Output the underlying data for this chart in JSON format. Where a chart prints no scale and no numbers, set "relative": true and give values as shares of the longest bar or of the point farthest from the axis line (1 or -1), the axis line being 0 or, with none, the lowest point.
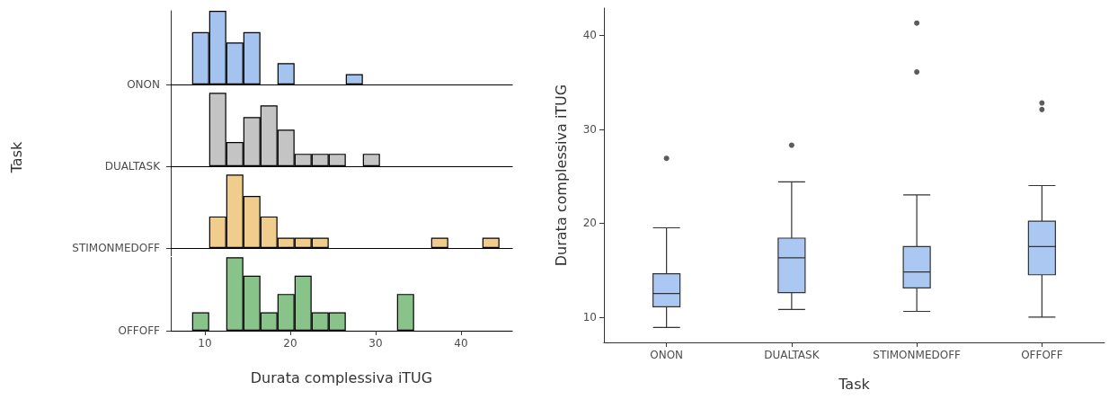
{
  "chart_data": [
    {
      "type": "bar",
      "ylabel": "ONON",
      "xlim": [
        6,
        46
      ],
      "xticks": [
        10,
        20,
        30,
        40
      ],
      "tick_labels": false,
      "relative": true,
      "color": "#a4c4ef",
      "x": [
        9.5,
        11.5,
        13.5,
        15.5,
        17.5,
        19.5,
        21.5,
        23.5,
        25.5,
        27.5
      ],
      "values": [
        0.71,
        1,
        0.57,
        0.71,
        0,
        0.29,
        0,
        0,
        0,
        0.14
      ]
    },
    {
      "type": "bar",
      "ylabel": "DUALTASK",
      "annotations": [
        "Task"
      ],
      "xlim": [
        6,
        46
      ],
      "xticks": [
        10,
        20,
        30,
        40
      ],
      "tick_labels": false,
      "relative": true,
      "color": "#c4c4c4",
      "x": [
        11.5,
        13.5,
        15.5,
        17.5,
        19.5,
        21.5,
        23.5,
        25.5,
        27.5,
        29.5
      ],
      "values": [
        1,
        0.33,
        0.67,
        0.83,
        0.5,
        0.17,
        0.17,
        0.17,
        0,
        0.17
      ]
    },
    {
      "type": "bar",
      "ylabel": "STIMONMEDOFF",
      "xlim": [
        6,
        46
      ],
      "xticks": [
        10,
        20,
        30,
        40
      ],
      "tick_labels": false,
      "relative": true,
      "color": "#f0cd8d",
      "x": [
        11.5,
        13.5,
        15.5,
        17.5,
        19.5,
        21.5,
        23.5,
        25.5,
        27.5,
        29.5,
        31.5,
        33.5,
        35.5,
        37.5,
        39.5,
        41.5,
        43.5
      ],
      "values": [
        0.43,
        1,
        0.71,
        0.43,
        0.14,
        0.14,
        0.14,
        0,
        0,
        0,
        0,
        0,
        0,
        0.14,
        0,
        0,
        0.14
      ]
    },
    {
      "type": "bar",
      "ylabel": "OFFOFF",
      "xlabel": "Durata complessiva iTUG",
      "xlim": [
        6,
        46
      ],
      "xticks": [
        10,
        20,
        30,
        40
      ],
      "tick_labels": "x",
      "relative": true,
      "color": "#88c38a",
      "x": [
        9.5,
        11.5,
        13.5,
        15.5,
        17.5,
        19.5,
        21.5,
        23.5,
        25.5,
        27.5,
        29.5,
        31.5,
        33.5
      ],
      "values": [
        0.25,
        0,
        1,
        0.75,
        0.25,
        0.5,
        0.75,
        0.25,
        0.25,
        0,
        0,
        0,
        0.5
      ]
    },
    {
      "type": "box",
      "xlabel": "Task",
      "ylabel": "Durata complessiva iTUG",
      "categories": [
        "ONON",
        "DUALTASK",
        "STIMONMEDOFF",
        "OFFOFF"
      ],
      "ylim": [
        7.3,
        42.9
      ],
      "yticks": [
        10,
        20,
        30,
        40
      ],
      "color": "#abc8f2",
      "grid": false,
      "boxes": [
        {
          "low": 8.9,
          "q1": 11.1,
          "median": 12.5,
          "q3": 14.6,
          "high": 19.5,
          "outliers": [
            26.9
          ]
        },
        {
          "low": 10.8,
          "q1": 12.6,
          "median": 16.3,
          "q3": 18.4,
          "high": 24.4,
          "outliers": [
            28.3
          ]
        },
        {
          "low": 10.6,
          "q1": 13.1,
          "median": 14.8,
          "q3": 17.5,
          "high": 23.0,
          "outliers": [
            36.1,
            41.3
          ]
        },
        {
          "low": 10.0,
          "q1": 14.5,
          "median": 17.5,
          "q3": 20.2,
          "high": 24.0,
          "outliers": [
            32.1,
            32.8
          ]
        }
      ]
    }
  ]
}
